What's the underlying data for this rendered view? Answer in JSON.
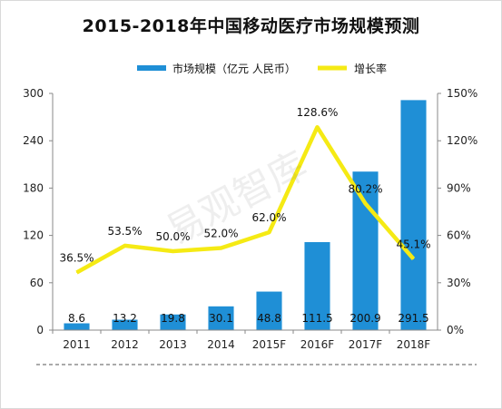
{
  "watermark_text": "易观智库",
  "chart_data": {
    "type": "bar+line",
    "title": "2015-2018年中国移动医疗市场规模预测",
    "categories": [
      "2011",
      "2012",
      "2013",
      "2014",
      "2015F",
      "2016F",
      "2017F",
      "2018F"
    ],
    "series": [
      {
        "name": "市场规模（亿元 人民币）",
        "type": "bar",
        "axis": "left",
        "color": "#1f8fd6",
        "values": [
          8.6,
          13.2,
          19.8,
          30.1,
          48.8,
          111.5,
          200.9,
          291.5
        ],
        "labels": [
          "8.6",
          "13.2",
          "19.8",
          "30.1",
          "48.8",
          "111.5",
          "200.9",
          "291.5"
        ]
      },
      {
        "name": "增长率",
        "type": "line",
        "axis": "right",
        "color": "#f5ea14",
        "values": [
          36.5,
          53.5,
          50.0,
          52.0,
          62.0,
          128.6,
          80.2,
          45.1
        ],
        "labels": [
          "36.5%",
          "53.5%",
          "50.0%",
          "52.0%",
          "62.0%",
          "128.6%",
          "80.2%",
          "45.1%"
        ]
      }
    ],
    "y_left": {
      "range": [
        0,
        300
      ],
      "ticks": [
        "0",
        "60",
        "120",
        "180",
        "240",
        "300"
      ]
    },
    "y_right": {
      "range": [
        0,
        150
      ],
      "ticks": [
        "0%",
        "30%",
        "60%",
        "90%",
        "120%",
        "150%"
      ]
    },
    "grid": false,
    "legend_position": "top"
  }
}
